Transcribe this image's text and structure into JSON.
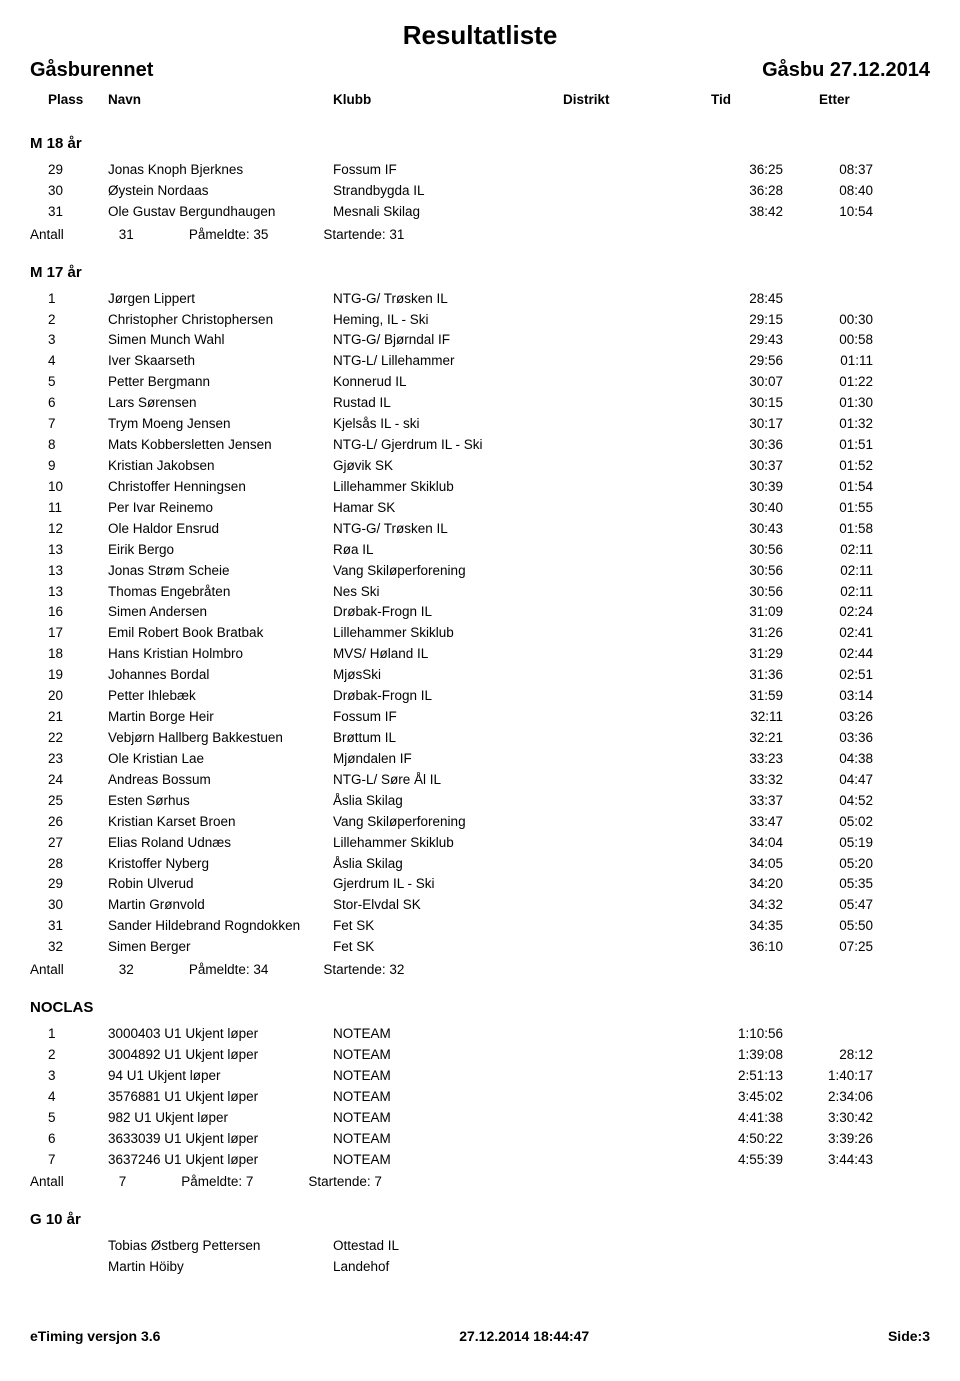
{
  "page": {
    "title": "Resultatliste",
    "event": "Gåsburennet",
    "location_date": "Gåsbu  27.12.2014",
    "footer_left": "eTiming versjon 3.6",
    "footer_center": "27.12.2014 18:44:47",
    "footer_right": "Side:3"
  },
  "columns": {
    "plass": "Plass",
    "navn": "Navn",
    "klubb": "Klubb",
    "distrikt": "Distrikt",
    "tid": "Tid",
    "etter": "Etter"
  },
  "summary_labels": {
    "antall": "Antall",
    "pameldte": "Påmeldte:",
    "startende": "Startende:"
  },
  "sections": [
    {
      "title": "M 18 år",
      "rows": [
        {
          "plass": "29",
          "navn": "Jonas Knoph Bjerknes",
          "klubb": "Fossum IF",
          "tid": "36:25",
          "etter": "08:37"
        },
        {
          "plass": "30",
          "navn": "Øystein Nordaas",
          "klubb": "Strandbygda IL",
          "tid": "36:28",
          "etter": "08:40"
        },
        {
          "plass": "31",
          "navn": "Ole Gustav Bergundhaugen",
          "klubb": "Mesnali Skilag",
          "tid": "38:42",
          "etter": "10:54"
        }
      ],
      "summary": {
        "antall": "31",
        "pameldte": "35",
        "startende": "31"
      }
    },
    {
      "title": "M 17 år",
      "rows": [
        {
          "plass": "1",
          "navn": "Jørgen Lippert",
          "klubb": "NTG-G/ Trøsken IL",
          "tid": "28:45",
          "etter": ""
        },
        {
          "plass": "2",
          "navn": "Christopher Christophersen",
          "klubb": "Heming, IL - Ski",
          "tid": "29:15",
          "etter": "00:30"
        },
        {
          "plass": "3",
          "navn": "Simen Munch Wahl",
          "klubb": "NTG-G/ Bjørndal IF",
          "tid": "29:43",
          "etter": "00:58"
        },
        {
          "plass": "4",
          "navn": "Iver Skaarseth",
          "klubb": "NTG-L/ Lillehammer",
          "tid": "29:56",
          "etter": "01:11"
        },
        {
          "plass": "5",
          "navn": "Petter Bergmann",
          "klubb": "Konnerud IL",
          "tid": "30:07",
          "etter": "01:22"
        },
        {
          "plass": "6",
          "navn": "Lars Sørensen",
          "klubb": "Rustad IL",
          "tid": "30:15",
          "etter": "01:30"
        },
        {
          "plass": "7",
          "navn": "Trym Moeng Jensen",
          "klubb": "Kjelsås IL - ski",
          "tid": "30:17",
          "etter": "01:32"
        },
        {
          "plass": "8",
          "navn": "Mats Kobbersletten Jensen",
          "klubb": "NTG-L/ Gjerdrum IL - Ski",
          "tid": "30:36",
          "etter": "01:51"
        },
        {
          "plass": "9",
          "navn": "Kristian Jakobsen",
          "klubb": "Gjøvik SK",
          "tid": "30:37",
          "etter": "01:52"
        },
        {
          "plass": "10",
          "navn": "Christoffer Henningsen",
          "klubb": "Lillehammer Skiklub",
          "tid": "30:39",
          "etter": "01:54"
        },
        {
          "plass": "11",
          "navn": "Per Ivar Reinemo",
          "klubb": "Hamar SK",
          "tid": "30:40",
          "etter": "01:55"
        },
        {
          "plass": "12",
          "navn": "Ole Haldor Ensrud",
          "klubb": "NTG-G/ Trøsken IL",
          "tid": "30:43",
          "etter": "01:58"
        },
        {
          "plass": "13",
          "navn": "Eirik Bergo",
          "klubb": "Røa IL",
          "tid": "30:56",
          "etter": "02:11"
        },
        {
          "plass": "13",
          "navn": "Jonas Strøm Scheie",
          "klubb": "Vang Skiløperforening",
          "tid": "30:56",
          "etter": "02:11"
        },
        {
          "plass": "13",
          "navn": "Thomas Engebråten",
          "klubb": "Nes Ski",
          "tid": "30:56",
          "etter": "02:11"
        },
        {
          "plass": "16",
          "navn": "Simen Andersen",
          "klubb": "Drøbak-Frogn IL",
          "tid": "31:09",
          "etter": "02:24"
        },
        {
          "plass": "17",
          "navn": "Emil Robert Book Bratbak",
          "klubb": "Lillehammer Skiklub",
          "tid": "31:26",
          "etter": "02:41"
        },
        {
          "plass": "18",
          "navn": "Hans Kristian Holmbro",
          "klubb": "MVS/ Høland IL",
          "tid": "31:29",
          "etter": "02:44"
        },
        {
          "plass": "19",
          "navn": "Johannes Bordal",
          "klubb": "MjøsSki",
          "tid": "31:36",
          "etter": "02:51"
        },
        {
          "plass": "20",
          "navn": "Petter Ihlebæk",
          "klubb": "Drøbak-Frogn IL",
          "tid": "31:59",
          "etter": "03:14"
        },
        {
          "plass": "21",
          "navn": "Martin Borge Heir",
          "klubb": "Fossum IF",
          "tid": "32:11",
          "etter": "03:26"
        },
        {
          "plass": "22",
          "navn": "Vebjørn Hallberg Bakkestuen",
          "klubb": "Brøttum IL",
          "tid": "32:21",
          "etter": "03:36"
        },
        {
          "plass": "23",
          "navn": "Ole Kristian Lae",
          "klubb": "Mjøndalen IF",
          "tid": "33:23",
          "etter": "04:38"
        },
        {
          "plass": "24",
          "navn": "Andreas Bossum",
          "klubb": "NTG-L/ Søre Ål IL",
          "tid": "33:32",
          "etter": "04:47"
        },
        {
          "plass": "25",
          "navn": "Esten Sørhus",
          "klubb": "Åslia Skilag",
          "tid": "33:37",
          "etter": "04:52"
        },
        {
          "plass": "26",
          "navn": "Kristian Karset Broen",
          "klubb": "Vang Skiløperforening",
          "tid": "33:47",
          "etter": "05:02"
        },
        {
          "plass": "27",
          "navn": "Elias Roland Udnæs",
          "klubb": "Lillehammer Skiklub",
          "tid": "34:04",
          "etter": "05:19"
        },
        {
          "plass": "28",
          "navn": "Kristoffer Nyberg",
          "klubb": "Åslia Skilag",
          "tid": "34:05",
          "etter": "05:20"
        },
        {
          "plass": "29",
          "navn": "Robin Ulverud",
          "klubb": "Gjerdrum IL - Ski",
          "tid": "34:20",
          "etter": "05:35"
        },
        {
          "plass": "30",
          "navn": "Martin Grønvold",
          "klubb": "Stor-Elvdal SK",
          "tid": "34:32",
          "etter": "05:47"
        },
        {
          "plass": "31",
          "navn": "Sander Hildebrand Rogndokken",
          "klubb": "Fet SK",
          "tid": "34:35",
          "etter": "05:50"
        },
        {
          "plass": "32",
          "navn": "Simen Berger",
          "klubb": "Fet SK",
          "tid": "36:10",
          "etter": "07:25"
        }
      ],
      "summary": {
        "antall": "32",
        "pameldte": "34",
        "startende": "32"
      }
    },
    {
      "title": "NOCLAS",
      "rows": [
        {
          "plass": "1",
          "navn": "3000403 U1 Ukjent løper",
          "klubb": "NOTEAM",
          "tid": "1:10:56",
          "etter": ""
        },
        {
          "plass": "2",
          "navn": "3004892 U1 Ukjent løper",
          "klubb": "NOTEAM",
          "tid": "1:39:08",
          "etter": "28:12"
        },
        {
          "plass": "3",
          "navn": "94 U1 Ukjent løper",
          "klubb": "NOTEAM",
          "tid": "2:51:13",
          "etter": "1:40:17"
        },
        {
          "plass": "4",
          "navn": "3576881 U1 Ukjent løper",
          "klubb": "NOTEAM",
          "tid": "3:45:02",
          "etter": "2:34:06"
        },
        {
          "plass": "5",
          "navn": "982 U1 Ukjent løper",
          "klubb": "NOTEAM",
          "tid": "4:41:38",
          "etter": "3:30:42"
        },
        {
          "plass": "6",
          "navn": "3633039 U1 Ukjent løper",
          "klubb": "NOTEAM",
          "tid": "4:50:22",
          "etter": "3:39:26"
        },
        {
          "plass": "7",
          "navn": "3637246 U1 Ukjent løper",
          "klubb": "NOTEAM",
          "tid": "4:55:39",
          "etter": "3:44:43"
        }
      ],
      "summary": {
        "antall": "7",
        "pameldte": "7",
        "startende": "7"
      }
    },
    {
      "title": "G 10 år",
      "rows": [
        {
          "plass": "",
          "navn": "Tobias Østberg Pettersen",
          "klubb": "Ottestad IL",
          "tid": "",
          "etter": ""
        },
        {
          "plass": "",
          "navn": "Martin Höiby",
          "klubb": "Landehof",
          "tid": "",
          "etter": ""
        }
      ],
      "summary": null
    }
  ]
}
